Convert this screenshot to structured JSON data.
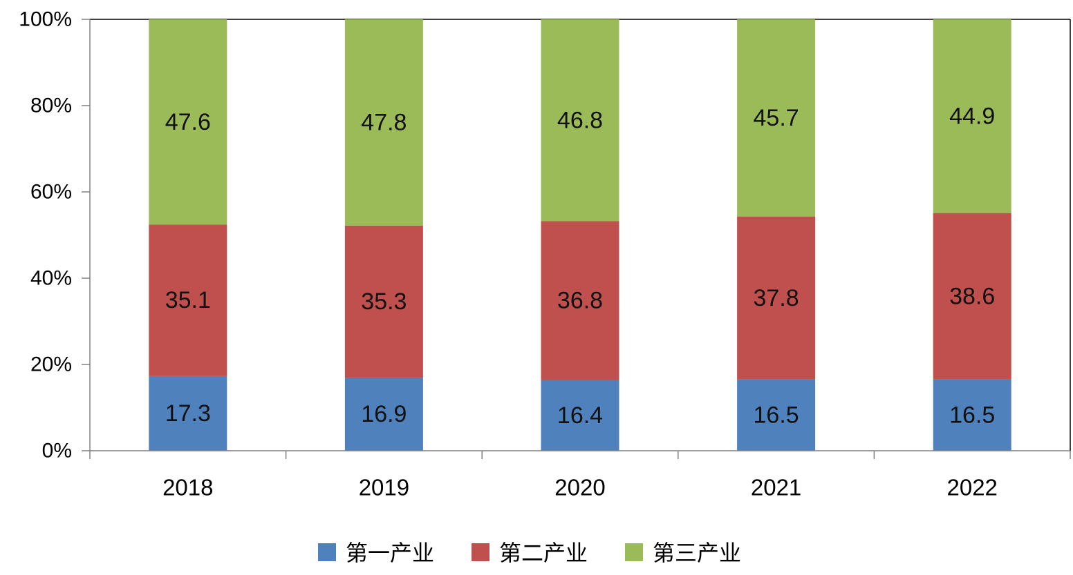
{
  "chart_data": {
    "type": "bar",
    "stacked": true,
    "percent_stacked": true,
    "categories": [
      "2018",
      "2019",
      "2020",
      "2021",
      "2022"
    ],
    "series": [
      {
        "name": "第一产业",
        "color": "#4f81bd",
        "values": [
          17.3,
          16.9,
          16.4,
          16.5,
          16.5
        ]
      },
      {
        "name": "第二产业",
        "color": "#c0504d",
        "values": [
          35.1,
          35.3,
          36.8,
          37.8,
          38.6
        ]
      },
      {
        "name": "第三产业",
        "color": "#9bbb59",
        "values": [
          47.6,
          47.8,
          46.8,
          45.7,
          44.9
        ]
      }
    ],
    "y_ticks": [
      "0%",
      "20%",
      "40%",
      "60%",
      "80%",
      "100%"
    ],
    "ylim": [
      0,
      100
    ],
    "grid": false,
    "legend_position": "bottom",
    "data_labels": true
  }
}
